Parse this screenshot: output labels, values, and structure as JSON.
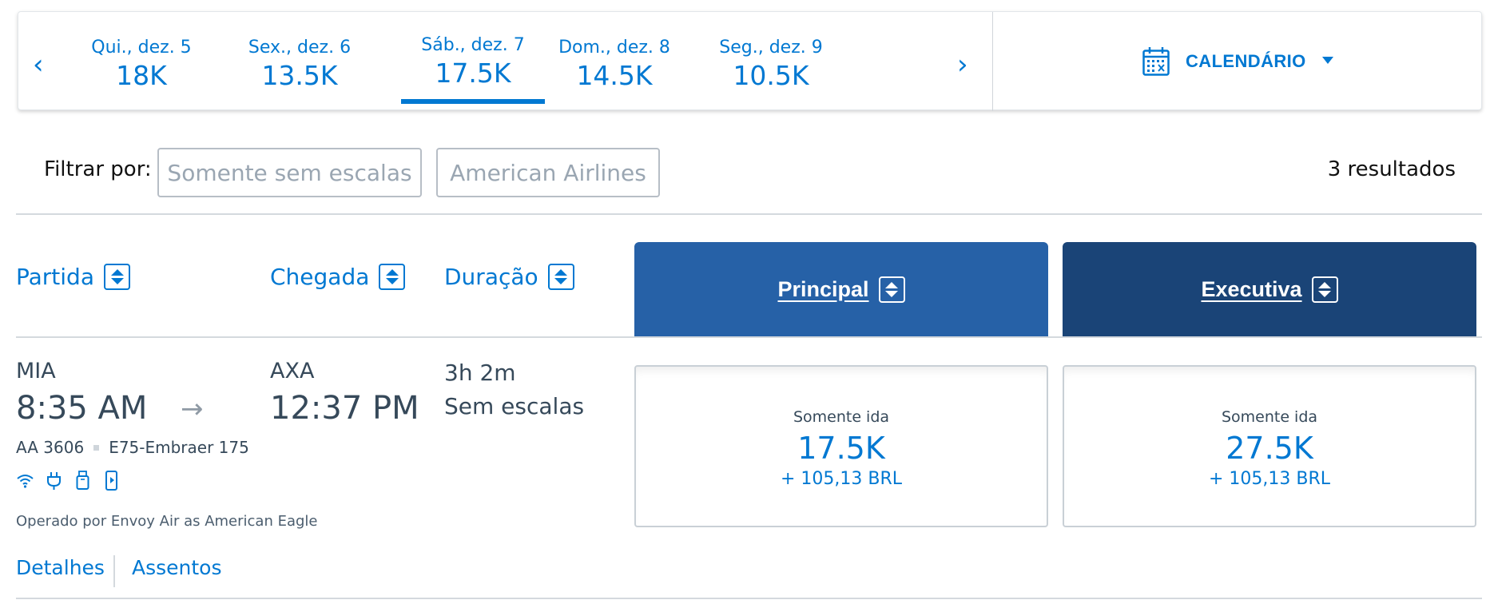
{
  "date_bar": {
    "prev_arrow": "‹",
    "next_arrow": "›",
    "tabs": [
      {
        "label": "Qui., dez. 5",
        "price": "18K"
      },
      {
        "label": "Sex., dez. 6",
        "price": "13.5K"
      },
      {
        "label": "Sáb., dez. 7",
        "price": "17.5K",
        "selected": true
      },
      {
        "label": "Dom., dez. 8",
        "price": "14.5K"
      },
      {
        "label": "Seg., dez. 9",
        "price": "10.5K"
      }
    ],
    "calendar_label": "CALENDÁRIO",
    "calendar_icon": "calendar-icon"
  },
  "filters": {
    "label": "Filtrar por:",
    "nonstop": "Somente sem escalas",
    "airline": "American Airlines",
    "results": "3 resultados"
  },
  "columns": {
    "departure": "Partida",
    "arrival": "Chegada",
    "duration": "Duração",
    "main_cabin": "Principal",
    "business_cabin": "Executiva"
  },
  "flight": {
    "origin": "MIA",
    "departure_time": "8:35 AM",
    "arrow": "→",
    "destination": "AXA",
    "arrival_time": "12:37 PM",
    "duration": "3h 2m",
    "stops": "Sem escalas",
    "flight_number": "AA 3606",
    "aircraft": "E75-Embraer 175",
    "amenities": [
      "wifi-icon",
      "power-outlet-icon",
      "usb-icon",
      "mobile-entertainment-icon"
    ],
    "operated_by": "Operado por Envoy Air as American Eagle",
    "details_link": "Detalhes",
    "seats_link": "Assentos",
    "fares": {
      "main": {
        "type": "Somente ida",
        "miles": "17.5K",
        "taxes": "+ 105,13 BRL"
      },
      "business": {
        "type": "Somente ida",
        "miles": "27.5K",
        "taxes": "+ 105,13 BRL"
      }
    }
  },
  "colors": {
    "accent": "#0078d2",
    "main_cabin": "#2661a7",
    "business_cabin": "#1a4477",
    "text": "#36495a"
  }
}
